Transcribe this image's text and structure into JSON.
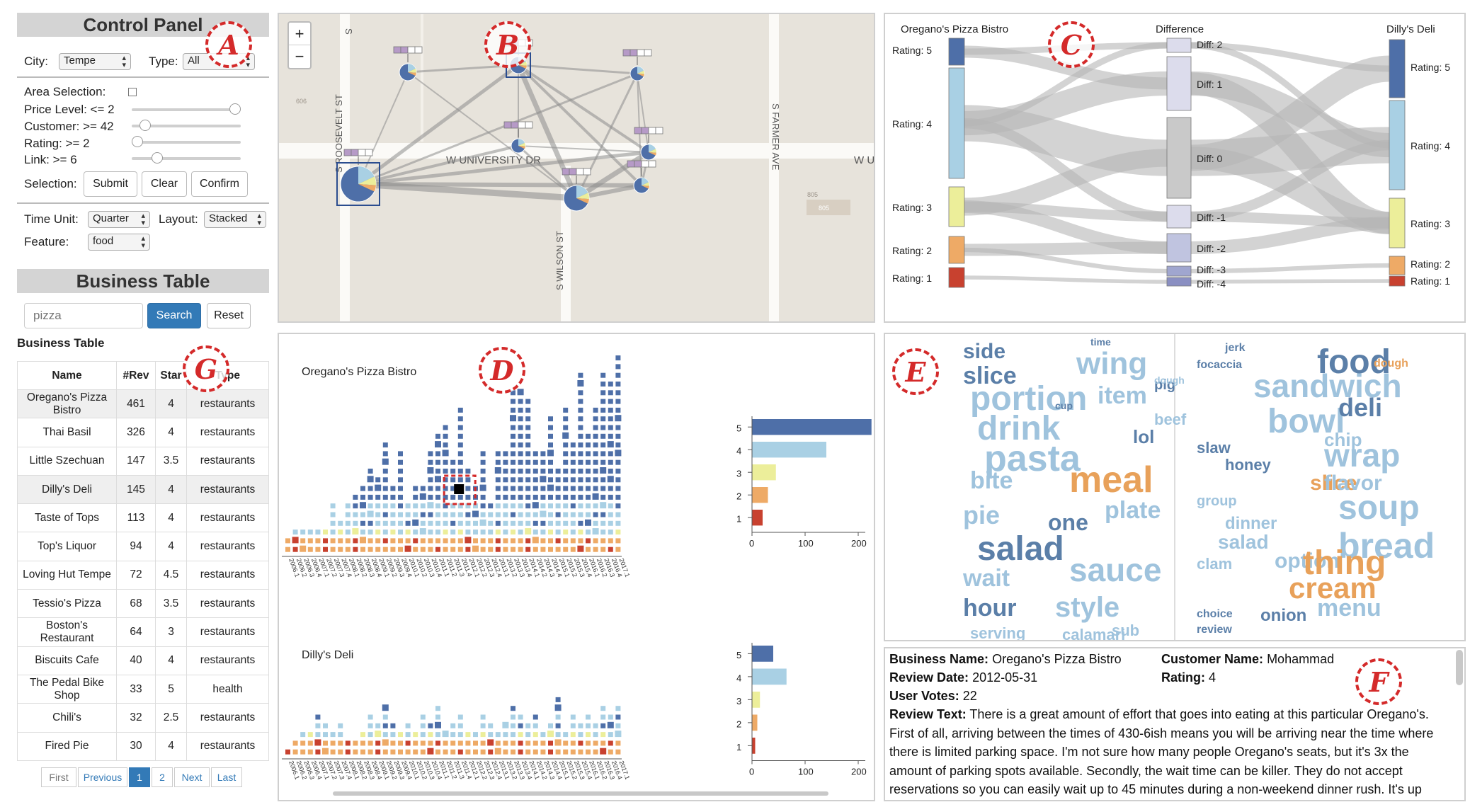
{
  "tags": {
    "a": "A",
    "b": "B",
    "c": "C",
    "d": "D",
    "e": "E",
    "f": "F",
    "g": "G"
  },
  "control": {
    "title": "Control Panel",
    "city_label": "City:",
    "city_value": "Tempe",
    "type_label": "Type:",
    "type_value": "All",
    "area_label": "Area Selection:",
    "price_label": "Price Level: <= 2",
    "price_fraction": 1.0,
    "customer_label": "Customer: >= 42",
    "customer_fraction": 0.08,
    "rating_label": "Rating: >= 2",
    "rating_fraction": 0.0,
    "link_label": "Link: >= 6",
    "link_fraction": 0.2,
    "selection_label": "Selection:",
    "submit": "Submit",
    "clear": "Clear",
    "confirm": "Confirm",
    "timeunit_label": "Time Unit:",
    "timeunit_value": "Quarter",
    "layout_label": "Layout:",
    "layout_value": "Stacked",
    "feature_label": "Feature:",
    "feature_value": "food"
  },
  "business": {
    "title": "Business Table",
    "search_placeholder": "pizza",
    "search_btn": "Search",
    "reset_btn": "Reset",
    "caption": "Business Table",
    "headers": [
      "Name",
      "#Rev",
      "Star",
      "Type"
    ],
    "rows": [
      [
        "Oregano's Pizza Bistro",
        "461",
        "4",
        "restaurants"
      ],
      [
        "Thai Basil",
        "326",
        "4",
        "restaurants"
      ],
      [
        "Little Szechuan",
        "147",
        "3.5",
        "restaurants"
      ],
      [
        "Dilly's Deli",
        "145",
        "4",
        "restaurants"
      ],
      [
        "Taste of Tops",
        "113",
        "4",
        "restaurants"
      ],
      [
        "Top's Liquor",
        "94",
        "4",
        "restaurants"
      ],
      [
        "Loving Hut Tempe",
        "72",
        "4.5",
        "restaurants"
      ],
      [
        "Tessio's Pizza",
        "68",
        "3.5",
        "restaurants"
      ],
      [
        "Boston's Restaurant",
        "64",
        "3",
        "restaurants"
      ],
      [
        "Biscuits Cafe",
        "40",
        "4",
        "restaurants"
      ],
      [
        "The Pedal Bike Shop",
        "33",
        "5",
        "health"
      ],
      [
        "Chili's",
        "32",
        "2.5",
        "restaurants"
      ],
      [
        "Fired Pie",
        "30",
        "4",
        "restaurants"
      ]
    ],
    "pager": [
      "First",
      "Previous",
      "1",
      "2",
      "Next",
      "Last"
    ]
  },
  "map": {
    "zoom_in": "+",
    "zoom_out": "−",
    "streets": [
      "W UNIVERSITY DR",
      "W U",
      "S ROOSEVELT ST",
      "S WILSON ST",
      "S FARMER AVE",
      "S"
    ],
    "lot_labels": [
      "606",
      "805",
      "805"
    ]
  },
  "sankey": {
    "left_title": "Oregano's Pizza Bistro",
    "mid_title": "Difference",
    "right_title": "Dilly's Deli",
    "left_labels": [
      "Rating: 5",
      "Rating: 4",
      "Rating: 3",
      "Rating: 2",
      "Rating: 1"
    ],
    "mid_labels": [
      "Diff: 2",
      "Diff: 1",
      "Diff: 0",
      "Diff: -1",
      "Diff: -2",
      "Diff: -3",
      "Diff: -4"
    ],
    "right_labels": [
      "Rating: 5",
      "Rating: 4",
      "Rating: 3",
      "Rating: 2",
      "Rating: 1"
    ]
  },
  "timeline": {
    "top_title": "Oregano's Pizza Bistro",
    "bottom_title": "Dilly's Deli",
    "quarters": [
      "2006.1",
      "2006.2",
      "2006.3",
      "2006.4",
      "2007.1",
      "2007.2",
      "2007.3",
      "2007.4",
      "2008.1",
      "2008.2",
      "2008.3",
      "2008.4",
      "2009.1",
      "2009.2",
      "2009.3",
      "2009.4",
      "2010.1",
      "2010.2",
      "2010.3",
      "2010.4",
      "2011.1",
      "2011.2",
      "2011.3",
      "2011.4",
      "2012.1",
      "2012.2",
      "2012.3",
      "2012.4",
      "2013.1",
      "2013.2",
      "2013.3",
      "2013.4",
      "2014.1",
      "2014.2",
      "2014.3",
      "2014.4",
      "2015.1",
      "2015.2",
      "2015.3",
      "2015.4",
      "2016.1",
      "2016.2",
      "2016.3",
      "2016.4",
      "2017.1"
    ],
    "top_bars": {
      "ratings": [
        "5",
        "4",
        "3",
        "2",
        "1"
      ],
      "values": [
        225,
        140,
        45,
        30,
        20
      ],
      "ticks": [
        "0",
        "100",
        "200"
      ]
    },
    "bottom_bars": {
      "ratings": [
        "5",
        "4",
        "3",
        "2",
        "1"
      ],
      "values": [
        40,
        65,
        15,
        10,
        6
      ],
      "ticks": [
        "0",
        "100",
        "200"
      ]
    }
  },
  "words_left": [
    [
      "side",
      30,
      "#5b7fa8"
    ],
    [
      "slice",
      34,
      "#5b7fa8"
    ],
    [
      "wing",
      44,
      "#9fc3dd"
    ],
    [
      "portion",
      48,
      "#9fc3dd"
    ],
    [
      "drink",
      48,
      "#9fc3dd"
    ],
    [
      "item",
      34,
      "#9fc3dd"
    ],
    [
      "beef",
      22,
      "#9fc3dd"
    ],
    [
      "pasta",
      52,
      "#9fc3dd"
    ],
    [
      "lol",
      26,
      "#5b7fa8"
    ],
    [
      "bite",
      34,
      "#9fc3dd"
    ],
    [
      "meal",
      52,
      "#e8a15a"
    ],
    [
      "one",
      32,
      "#5b7fa8"
    ],
    [
      "pie",
      36,
      "#9fc3dd"
    ],
    [
      "plate",
      34,
      "#9fc3dd"
    ],
    [
      "salad",
      48,
      "#5b7fa8"
    ],
    [
      "wait",
      34,
      "#9fc3dd"
    ],
    [
      "sauce",
      46,
      "#9fc3dd"
    ],
    [
      "hour",
      34,
      "#5b7fa8"
    ],
    [
      "style",
      40,
      "#9fc3dd"
    ],
    [
      "serving",
      22,
      "#9fc3dd"
    ],
    [
      "calamari",
      22,
      "#9fc3dd"
    ],
    [
      "sub",
      22,
      "#9fc3dd"
    ],
    [
      "pig",
      20,
      "#5b7fa8"
    ],
    [
      "cup",
      14,
      "#5b7fa8"
    ],
    [
      "dough",
      14,
      "#9fc3dd"
    ],
    [
      "time",
      14,
      "#5b7fa8"
    ]
  ],
  "words_right": [
    [
      "food",
      48,
      "#5b7fa8"
    ],
    [
      "sandwich",
      46,
      "#9fc3dd"
    ],
    [
      "bowl",
      48,
      "#9fc3dd"
    ],
    [
      "deli",
      36,
      "#5b7fa8"
    ],
    [
      "chip",
      26,
      "#9fc3dd"
    ],
    [
      "wrap",
      46,
      "#9fc3dd"
    ],
    [
      "slaw",
      22,
      "#5b7fa8"
    ],
    [
      "slice",
      30,
      "#e8a15a"
    ],
    [
      "flavor",
      30,
      "#9fc3dd"
    ],
    [
      "honey",
      22,
      "#5b7fa8"
    ],
    [
      "soup",
      48,
      "#9fc3dd"
    ],
    [
      "group",
      20,
      "#9fc3dd"
    ],
    [
      "dinner",
      24,
      "#9fc3dd"
    ],
    [
      "salad",
      28,
      "#9fc3dd"
    ],
    [
      "bread",
      50,
      "#9fc3dd"
    ],
    [
      "option",
      30,
      "#9fc3dd"
    ],
    [
      "thing",
      48,
      "#e8a15a"
    ],
    [
      "clam",
      22,
      "#9fc3dd"
    ],
    [
      "cream",
      42,
      "#e8a15a"
    ],
    [
      "menu",
      34,
      "#9fc3dd"
    ],
    [
      "onion",
      24,
      "#5b7fa8"
    ],
    [
      "review",
      16,
      "#5b7fa8"
    ],
    [
      "choice",
      16,
      "#5b7fa8"
    ],
    [
      "jerk",
      16,
      "#5b7fa8"
    ],
    [
      "focaccia",
      16,
      "#5b7fa8"
    ],
    [
      "dough",
      16,
      "#e8a15a"
    ]
  ],
  "review": {
    "business_label": "Business Name:",
    "business": "Oregano's Pizza Bistro",
    "customer_label": "Customer Name:",
    "customer": "Mohammad",
    "date_label": "Review Date:",
    "date": "2012-05-31",
    "rating_label": "Rating:",
    "rating": "4",
    "votes_label": "User Votes:",
    "votes": "22",
    "text_label": "Review Text:",
    "text": "There is a great amount of effort that goes into eating at this particular Oregano's. First of all, arriving between the times of 430-6ish means you will be arriving near the time where there is limited parking space. I'm not sure how many people Oregano's seats, but it's 3x the amount of parking spots available. Secondly, the wait time can be killer. They do not accept reservations so you can easily wait up to 45 minutes during a non-weekend dinner rush. It's up"
  },
  "colors": {
    "r5": "#4e6fa8",
    "r4": "#a9d0e4",
    "r3": "#ecee9a",
    "r2": "#eeaa66",
    "r1": "#c8412f",
    "accent": "#337ab7",
    "tag": "#d42a2a"
  }
}
